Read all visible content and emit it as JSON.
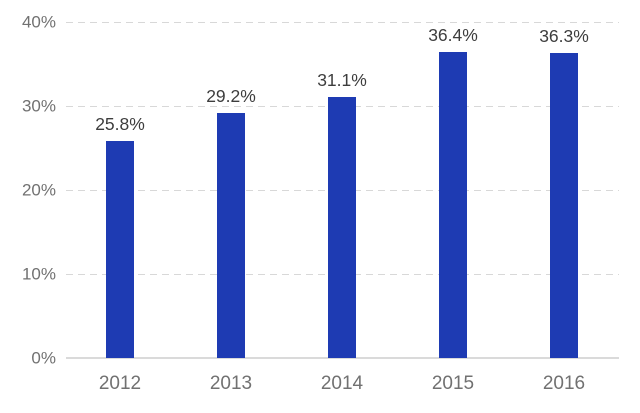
{
  "chart_data": {
    "type": "bar",
    "categories": [
      "2012",
      "2013",
      "2014",
      "2015",
      "2016"
    ],
    "values": [
      25.8,
      29.2,
      31.1,
      36.4,
      36.3
    ],
    "value_labels": [
      "25.8%",
      "29.2%",
      "31.1%",
      "36.4%",
      "36.3%"
    ],
    "title": "",
    "xlabel": "",
    "ylabel": "",
    "ylim": [
      0,
      40
    ],
    "yticks": [
      0,
      10,
      20,
      30,
      40
    ],
    "ytick_labels": [
      "0%",
      "10%",
      "20%",
      "30%",
      "40%"
    ],
    "grid": true,
    "legend_position": "none",
    "colors": {
      "bar": "#1e3bb3",
      "gridline": "#d8d8d8",
      "baseline": "#dadada",
      "axis_text": "#717171",
      "value_text": "#3d3d3d",
      "background": "#ffffff"
    }
  }
}
